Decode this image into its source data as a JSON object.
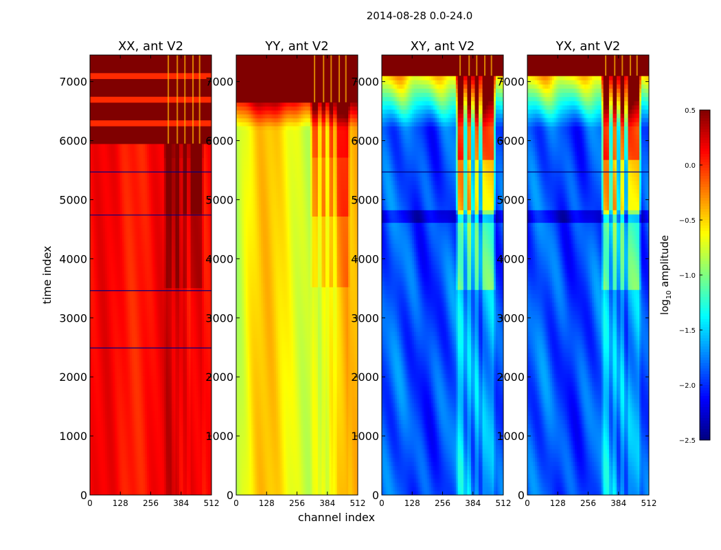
{
  "figure": {
    "suptitle": "2014-08-28 0.0-24.0"
  },
  "colorbar": {
    "label": "log10 amplitude",
    "label_prefix": "log",
    "label_sub": "10",
    "label_suffix": " amplitude",
    "range": [
      -2.5,
      0.5
    ],
    "ticks": [
      "0.5",
      "0.0",
      "−0.5",
      "−1.0",
      "−1.5",
      "−2.0",
      "−2.5"
    ],
    "colormap": "jet"
  },
  "chart_data": [
    {
      "type": "heatmap",
      "title": "XX, ant V2",
      "xlabel": "",
      "ylabel": "time index",
      "xlim": [
        0,
        512
      ],
      "ylim": [
        0,
        7450
      ],
      "xticks": [
        "0",
        "128",
        "256",
        "384",
        "512"
      ],
      "yticks": [
        "0",
        "1000",
        "2000",
        "3000",
        "4000",
        "5000",
        "6000",
        "7000"
      ],
      "base_level": 0.1,
      "saturated_above_time": 5950,
      "dark_lines_time": [
        5470,
        4740,
        3460,
        2490
      ],
      "bright_bands_time": [
        6290,
        6700,
        7100
      ],
      "rfi_channels": [
        330,
        368,
        400,
        434,
        462
      ]
    },
    {
      "type": "heatmap",
      "title": "YY, ant V2",
      "xlabel": "channel index",
      "ylabel": "",
      "xlim": [
        0,
        512
      ],
      "ylim": [
        0,
        7450
      ],
      "xticks": [
        "0",
        "128",
        "256",
        "384",
        "512"
      ],
      "yticks": [
        "0",
        "1000",
        "2000",
        "3000",
        "4000",
        "5000",
        "6000",
        "7000"
      ],
      "base_level": -0.6,
      "saturated_above_time": 6650,
      "dark_lines_time": [],
      "bright_bands_time": [],
      "rfi_channels": [
        330,
        368,
        400,
        434,
        462
      ]
    },
    {
      "type": "heatmap",
      "title": "XY, ant V2",
      "xlabel": "",
      "ylabel": "",
      "xlim": [
        0,
        512
      ],
      "ylim": [
        0,
        7450
      ],
      "xticks": [
        "0",
        "128",
        "256",
        "384",
        "512"
      ],
      "yticks": [
        "0",
        "1000",
        "2000",
        "3000",
        "4000",
        "5000",
        "6000",
        "7000"
      ],
      "base_level": -1.9,
      "saturated_above_time": 7100,
      "dark_lines_time": [
        5470
      ],
      "bright_bands_time": [],
      "rfi_channels": [
        330,
        368,
        400,
        434,
        462
      ]
    },
    {
      "type": "heatmap",
      "title": "YX, ant V2",
      "xlabel": "",
      "ylabel": "",
      "xlim": [
        0,
        512
      ],
      "ylim": [
        0,
        7450
      ],
      "xticks": [
        "0",
        "128",
        "256",
        "384",
        "512"
      ],
      "yticks": [
        "0",
        "1000",
        "2000",
        "3000",
        "4000",
        "5000",
        "6000",
        "7000"
      ],
      "base_level": -1.9,
      "saturated_above_time": 7100,
      "dark_lines_time": [
        5470
      ],
      "bright_bands_time": [],
      "rfi_channels": [
        330,
        368,
        400,
        434,
        462
      ]
    }
  ]
}
